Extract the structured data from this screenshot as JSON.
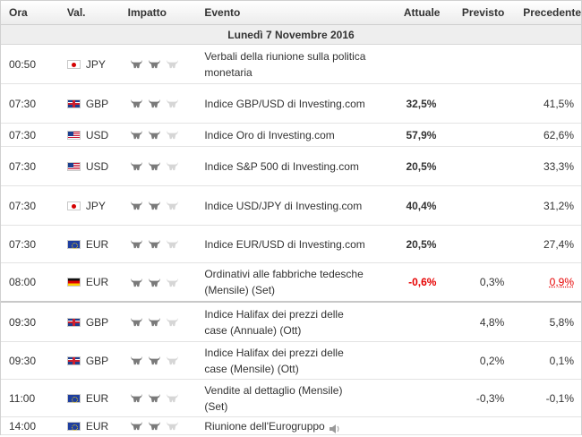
{
  "headers": {
    "time": "Ora",
    "currency": "Val.",
    "impact": "Impatto",
    "event": "Evento",
    "actual": "Attuale",
    "forecast": "Previsto",
    "previous": "Precedente"
  },
  "date_label": "Lunedì 7 Novembre 2016",
  "impact_colors": {
    "active": "#7a7a7a",
    "inactive": "#d6d6d6"
  },
  "rows": [
    {
      "time": "00:50",
      "flag": "flag-jp",
      "currency": "JPY",
      "impact": 2,
      "event": "Verbali della riunione sulla politica monetaria",
      "actual": "",
      "forecast": "",
      "previous": "",
      "actual_red": false,
      "previous_red": false
    },
    {
      "time": "07:30",
      "flag": "flag-gb",
      "currency": "GBP",
      "impact": 2,
      "event": "Indice GBP/USD di Investing.com",
      "actual": "32,5%",
      "forecast": "",
      "previous": "41,5%",
      "actual_red": false,
      "previous_red": false
    },
    {
      "time": "07:30",
      "flag": "flag-us",
      "currency": "USD",
      "impact": 2,
      "event": "Indice Oro di Investing.com",
      "actual": "57,9%",
      "forecast": "",
      "previous": "62,6%",
      "actual_red": false,
      "previous_red": false
    },
    {
      "time": "07:30",
      "flag": "flag-us",
      "currency": "USD",
      "impact": 2,
      "event": "Indice S&P 500 di Investing.com",
      "actual": "20,5%",
      "forecast": "",
      "previous": "33,3%",
      "actual_red": false,
      "previous_red": false
    },
    {
      "time": "07:30",
      "flag": "flag-jp",
      "currency": "JPY",
      "impact": 2,
      "event": "Indice USD/JPY di Investing.com",
      "actual": "40,4%",
      "forecast": "",
      "previous": "31,2%",
      "actual_red": false,
      "previous_red": false
    },
    {
      "time": "07:30",
      "flag": "flag-eu",
      "currency": "EUR",
      "impact": 2,
      "event": "Indice EUR/USD di Investing.com",
      "actual": "20,5%",
      "forecast": "",
      "previous": "27,4%",
      "actual_red": false,
      "previous_red": false
    },
    {
      "time": "08:00",
      "flag": "flag-de",
      "currency": "EUR",
      "impact": 2,
      "event": "Ordinativi alle fabbriche tedesche (Mensile) (Set)",
      "actual": "-0,6%",
      "forecast": "0,3%",
      "previous": "0,9%",
      "actual_red": true,
      "previous_red": true
    },
    {
      "time": "09:30",
      "flag": "flag-gb",
      "currency": "GBP",
      "impact": 2,
      "event": "Indice Halifax dei prezzi delle case (Annuale) (Ott)",
      "actual": "",
      "forecast": "4,8%",
      "previous": "5,8%",
      "actual_red": false,
      "previous_red": false
    },
    {
      "time": "09:30",
      "flag": "flag-gb",
      "currency": "GBP",
      "impact": 2,
      "event": "Indice Halifax dei prezzi delle case (Mensile) (Ott)",
      "actual": "",
      "forecast": "0,2%",
      "previous": "0,1%",
      "actual_red": false,
      "previous_red": false
    },
    {
      "time": "11:00",
      "flag": "flag-eu",
      "currency": "EUR",
      "impact": 2,
      "event": "Vendite al dettaglio (Mensile) (Set)",
      "actual": "",
      "forecast": "-0,3%",
      "previous": "-0,1%",
      "actual_red": false,
      "previous_red": false
    },
    {
      "time": "14:00",
      "flag": "flag-eu",
      "currency": "EUR",
      "impact": 2,
      "event": "Riunione dell'Eurogruppo",
      "actual": "",
      "forecast": "",
      "previous": "",
      "actual_red": false,
      "previous_red": false,
      "speaker": true
    }
  ]
}
